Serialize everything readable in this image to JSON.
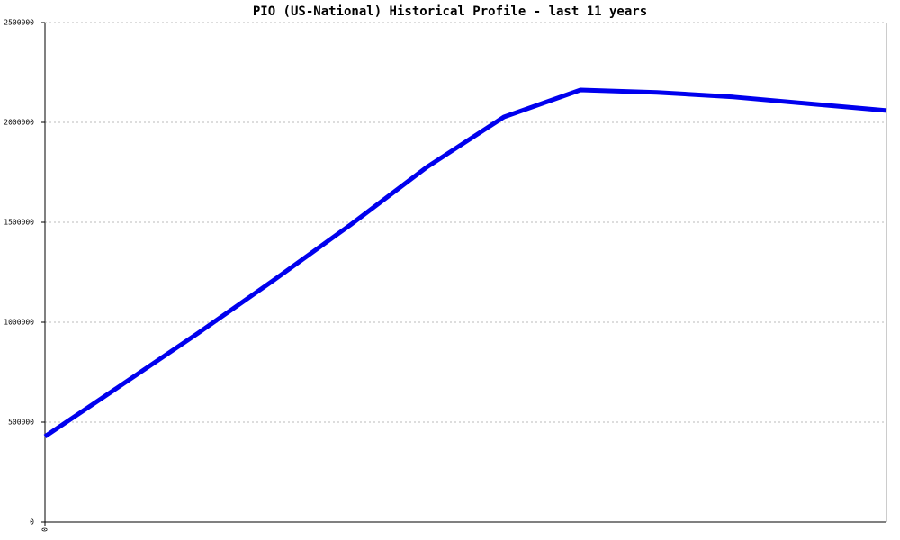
{
  "chart_data": {
    "type": "line",
    "title": "PIO (US-National) Historical Profile - last 11 years",
    "x": [
      0,
      1,
      2,
      3,
      4,
      5,
      6,
      7,
      8,
      9,
      10,
      11
    ],
    "xlim": [
      0,
      11
    ],
    "xticks": [
      0
    ],
    "series": [
      {
        "name": "PIO",
        "color": "#0000ee",
        "values": [
          428000,
          686000,
          945000,
          1213000,
          1489000,
          1778000,
          2027000,
          2162000,
          2150000,
          2127000,
          2093000,
          2059000
        ]
      }
    ],
    "ylim": [
      0,
      2500000
    ],
    "yticks": [
      0,
      500000,
      1000000,
      1500000,
      2000000,
      2500000
    ],
    "grid": true
  }
}
